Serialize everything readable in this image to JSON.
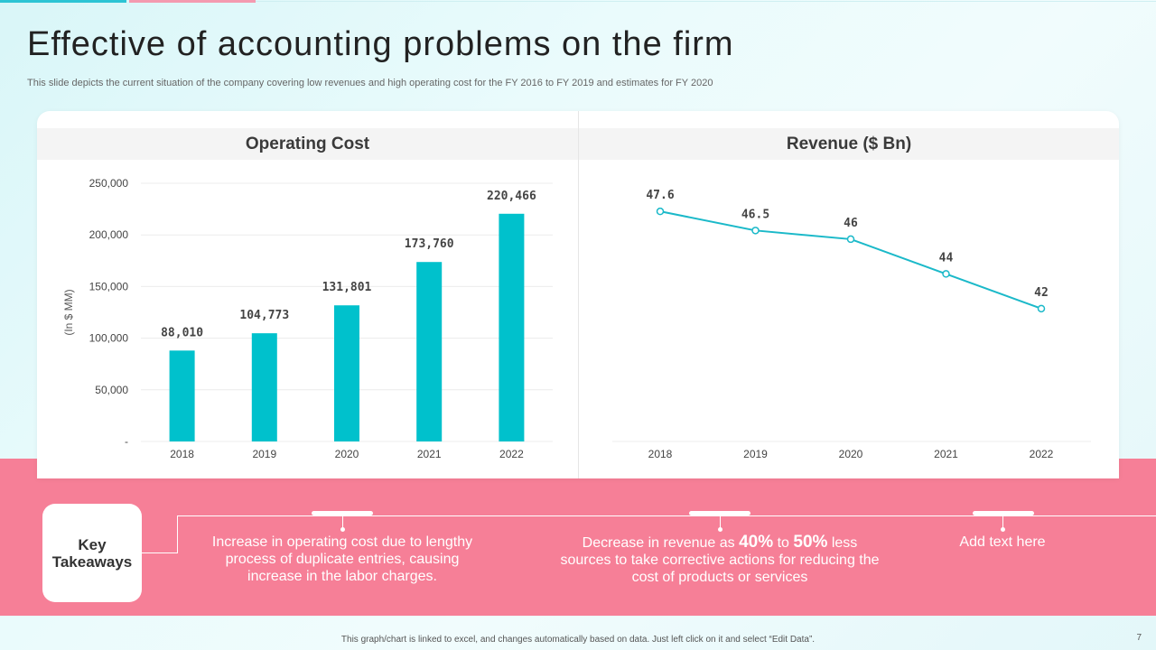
{
  "slide": {
    "title": "Effective of accounting problems on the firm",
    "subtitle": "This slide depicts the current situation of the company covering low revenues and high operating cost for the FY 2016 to FY 2019 and estimates for FY 2020",
    "footer": "This graph/chart is linked to excel, and changes automatically based on data. Just left click on it and select “Edit Data”.",
    "page_number": "7"
  },
  "colors": {
    "accent": "#00c1cc",
    "line": "#1bb9c9",
    "band": "#f67f97"
  },
  "chart_data": [
    {
      "type": "bar",
      "title": "Operating Cost",
      "ylabel": "(In $ MM)",
      "xlabel": "",
      "categories": [
        "2018",
        "2019",
        "2020",
        "2021",
        "2022"
      ],
      "values": [
        88010,
        104773,
        131801,
        173760,
        220466
      ],
      "value_labels": [
        "88,010",
        "104,773",
        "131,801",
        "173,760",
        "220,466"
      ],
      "ylim": [
        0,
        250000
      ],
      "yticks": [
        0,
        50000,
        100000,
        150000,
        200000,
        250000
      ],
      "ytick_labels": [
        "-",
        "50,000",
        "100,000",
        "150,000",
        "200,000",
        "250,000"
      ],
      "grid": true
    },
    {
      "type": "line",
      "title": "Revenue ($ Bn)",
      "categories": [
        "2018",
        "2019",
        "2020",
        "2021",
        "2022"
      ],
      "values": [
        47.6,
        46.5,
        46,
        44,
        42
      ],
      "value_labels": [
        "47.6",
        "46.5",
        "46",
        "44",
        "42"
      ],
      "ylim": [
        34.35,
        50
      ],
      "grid": false
    }
  ],
  "takeaways": {
    "label_line1": "Key",
    "label_line2": "Takeaways",
    "item1": [
      "Increase in operating cost due to lengthy",
      "process of duplicate entries, causing",
      "increase in the labor charges."
    ],
    "item2": {
      "pre": "Decrease in revenue",
      "as": " as ",
      "pct1": "40%",
      "to": " to ",
      "pct2": "50%",
      "post": " less",
      "line2": "sources to take corrective actions for reducing the",
      "line3": "cost of products or services"
    },
    "item3": "Add text here"
  }
}
